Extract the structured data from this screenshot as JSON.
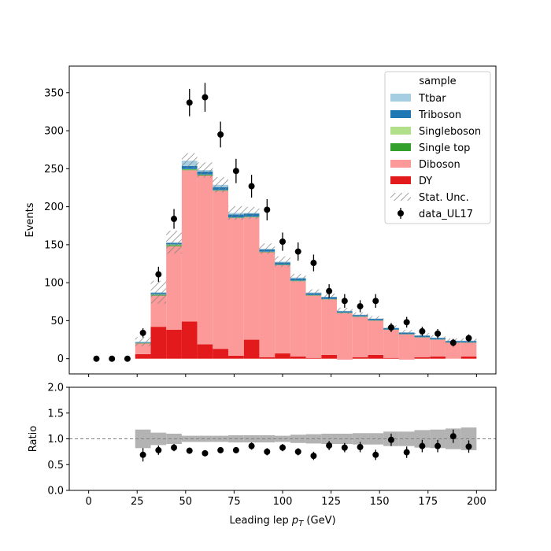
{
  "chart_data": [
    {
      "type": "bar",
      "stacked": true,
      "ylabel": "Events",
      "ylim": [
        -20,
        385
      ],
      "yticks": [
        0,
        50,
        100,
        150,
        200,
        250,
        300,
        350
      ],
      "xlim": [
        -10,
        210
      ],
      "xticks": [
        0,
        25,
        50,
        75,
        100,
        125,
        150,
        175,
        200
      ],
      "bin_edges": [
        0,
        8,
        16,
        24,
        32,
        40,
        48,
        56,
        64,
        72,
        80,
        88,
        96,
        104,
        112,
        120,
        128,
        136,
        144,
        152,
        160,
        168,
        176,
        184,
        192,
        200
      ],
      "legend": {
        "title": "sample",
        "location": "top-right"
      },
      "series": [
        {
          "name": "DY",
          "color": "#e31a1c",
          "values": [
            0,
            0,
            0,
            6,
            42,
            38,
            49,
            19,
            13,
            4,
            25,
            2,
            7,
            3,
            1,
            5,
            -1,
            2,
            5,
            1,
            -1,
            2,
            3,
            0,
            3
          ]
        },
        {
          "name": "Diboson",
          "color": "#fb9a99",
          "values": [
            0,
            0,
            0,
            14,
            41,
            110,
            199,
            222,
            208,
            181,
            161,
            138,
            116,
            99,
            82,
            73,
            61,
            53,
            45,
            37,
            33,
            26,
            22,
            21,
            18
          ]
        },
        {
          "name": "Single top",
          "color": "#33a02c",
          "values": [
            0,
            0,
            0,
            0.5,
            1,
            1.5,
            1,
            1,
            0.5,
            0.5,
            0.5,
            0.5,
            0.5,
            0.5,
            0.5,
            0.3,
            0.3,
            0.3,
            0.3,
            0.2,
            0.2,
            0.2,
            0.2,
            0.2,
            0.2
          ]
        },
        {
          "name": "Singleboson",
          "color": "#b2df8a",
          "values": [
            0,
            0,
            0,
            0.3,
            0.5,
            0.8,
            0.5,
            0.3,
            0.3,
            0.3,
            0.3,
            0.3,
            0.2,
            0.2,
            0.2,
            0.2,
            0.2,
            0.2,
            0.1,
            0.1,
            0.1,
            0.1,
            0.1,
            0.1,
            0.1
          ]
        },
        {
          "name": "Triboson",
          "color": "#1f78b4",
          "values": [
            0,
            0,
            0,
            1,
            2,
            2,
            4,
            4,
            4,
            4,
            4,
            3,
            3,
            3,
            2.5,
            2.5,
            2,
            2,
            2,
            2,
            2,
            2,
            2,
            2,
            2
          ]
        },
        {
          "name": "Ttbar",
          "color": "#a6cee3",
          "values": [
            0,
            0,
            0,
            0.5,
            1,
            1,
            7,
            2,
            3,
            2,
            1,
            1,
            1,
            1,
            1,
            0.5,
            0.5,
            0.5,
            0.5,
            0.5,
            0.5,
            0.5,
            0.5,
            0.5,
            0.5
          ]
        }
      ],
      "stat_unc": {
        "name": "Stat. Unc.",
        "values": [
          0,
          0,
          0,
          6,
          15,
          15,
          10,
          10,
          10,
          9,
          8,
          7,
          7,
          5,
          4,
          4,
          4,
          3,
          3,
          3,
          3,
          3,
          3,
          3,
          3
        ]
      },
      "data": {
        "name": "data_UL17",
        "x": [
          4,
          12,
          20,
          28,
          36,
          44,
          52,
          60,
          68,
          76,
          84,
          92,
          100,
          108,
          116,
          124,
          132,
          140,
          148,
          156,
          164,
          172,
          180,
          188,
          196
        ],
        "y": [
          0,
          0,
          0,
          34,
          111,
          184,
          337,
          344,
          295,
          247,
          227,
          196,
          154,
          141,
          126,
          89,
          76,
          69,
          76,
          41,
          48,
          36,
          33,
          21,
          27
        ],
        "yerr": [
          0,
          0,
          0,
          6,
          10,
          13,
          18,
          19,
          17,
          16,
          15,
          14,
          12,
          12,
          11,
          9,
          9,
          8,
          9,
          6,
          7,
          6,
          6,
          5,
          5
        ]
      }
    },
    {
      "type": "scatter",
      "ylabel": "Ratio",
      "xlabel": "Leading lep p_T (GeV)",
      "ylim": [
        0,
        2
      ],
      "yticks": [
        "0.0",
        "0.5",
        "1.0",
        "1.5",
        "2.0"
      ],
      "xticks": [
        "0",
        "25",
        "50",
        "75",
        "100",
        "125",
        "150",
        "175",
        "200"
      ],
      "reference_line": 1.0,
      "ratio": {
        "x": [
          28,
          36,
          44,
          52,
          60,
          68,
          76,
          84,
          92,
          100,
          108,
          116,
          124,
          132,
          140,
          148,
          156,
          164,
          172,
          180,
          188,
          196
        ],
        "y": [
          0.69,
          0.78,
          0.83,
          0.77,
          0.72,
          0.78,
          0.78,
          0.86,
          0.75,
          0.83,
          0.75,
          0.67,
          0.87,
          0.83,
          0.84,
          0.69,
          0.98,
          0.74,
          0.86,
          0.86,
          1.05,
          0.85
        ],
        "yerr": [
          0.13,
          0.09,
          0.07,
          0.06,
          0.06,
          0.06,
          0.06,
          0.07,
          0.07,
          0.07,
          0.07,
          0.08,
          0.09,
          0.09,
          0.1,
          0.1,
          0.12,
          0.11,
          0.12,
          0.12,
          0.13,
          0.12
        ]
      },
      "unc_band": [
        0.18,
        0.12,
        0.1,
        0.06,
        0.06,
        0.06,
        0.07,
        0.07,
        0.07,
        0.06,
        0.08,
        0.09,
        0.1,
        0.1,
        0.11,
        0.11,
        0.14,
        0.14,
        0.17,
        0.18,
        0.2,
        0.22
      ]
    }
  ]
}
